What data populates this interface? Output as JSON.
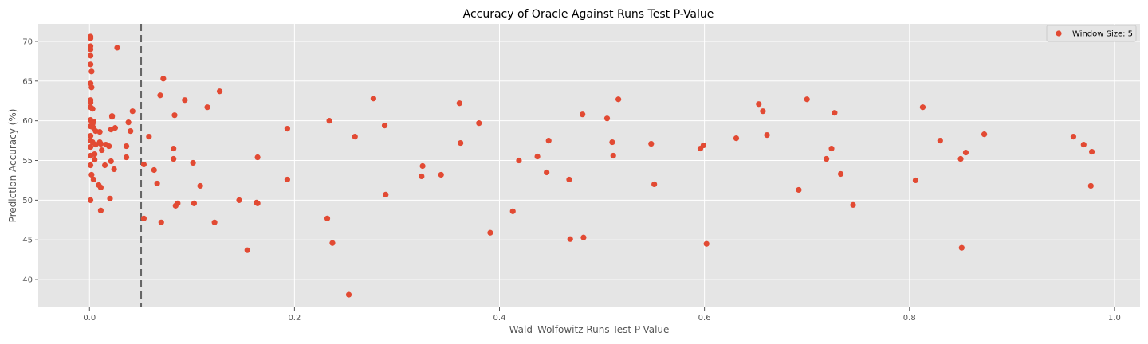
{
  "chart_data": {
    "type": "scatter",
    "title": "Accuracy of Oracle Against Runs Test P-Value",
    "xlabel": "Wald–Wolfowitz Runs Test P-Value",
    "ylabel": "Prediction Accuracy (%)",
    "xlim": [
      -0.05,
      1.025
    ],
    "ylim": [
      36.5,
      72.2
    ],
    "xticks": [
      0.0,
      0.2,
      0.4,
      0.6,
      0.8,
      1.0
    ],
    "xtick_labels": [
      "0.0",
      "0.2",
      "0.4",
      "0.6",
      "0.8",
      "1.0"
    ],
    "yticks": [
      40,
      45,
      50,
      55,
      60,
      65,
      70
    ],
    "ytick_labels": [
      "40",
      "45",
      "50",
      "55",
      "60",
      "65",
      "70"
    ],
    "grid": true,
    "legend_position": "top-right",
    "threshold_line": {
      "x": 0.05,
      "style": "dashed",
      "color": "#666666"
    },
    "colors": {
      "background": "#e5e5e5",
      "grid": "#ffffff",
      "point": "#e24a33"
    },
    "series": [
      {
        "name": "Window Size: 5",
        "points": [
          [
            0.001,
            70.6
          ],
          [
            0.001,
            70.4
          ],
          [
            0.001,
            69.4
          ],
          [
            0.001,
            69.0
          ],
          [
            0.001,
            68.2
          ],
          [
            0.001,
            67.1
          ],
          [
            0.002,
            66.2
          ],
          [
            0.001,
            64.7
          ],
          [
            0.002,
            64.2
          ],
          [
            0.001,
            62.6
          ],
          [
            0.001,
            62.3
          ],
          [
            0.001,
            61.7
          ],
          [
            0.003,
            61.5
          ],
          [
            0.001,
            60.1
          ],
          [
            0.004,
            59.9
          ],
          [
            0.003,
            59.6
          ],
          [
            0.001,
            59.3
          ],
          [
            0.004,
            59.1
          ],
          [
            0.006,
            58.7
          ],
          [
            0.001,
            58.1
          ],
          [
            0.001,
            57.5
          ],
          [
            0.003,
            57.3
          ],
          [
            0.006,
            57.0
          ],
          [
            0.001,
            56.7
          ],
          [
            0.005,
            55.8
          ],
          [
            0.001,
            55.6
          ],
          [
            0.005,
            55.1
          ],
          [
            0.001,
            54.4
          ],
          [
            0.002,
            53.2
          ],
          [
            0.004,
            52.6
          ],
          [
            0.001,
            50.0
          ],
          [
            0.01,
            58.6
          ],
          [
            0.01,
            57.3
          ],
          [
            0.011,
            57.1
          ],
          [
            0.012,
            56.3
          ],
          [
            0.016,
            57.0
          ],
          [
            0.019,
            56.8
          ],
          [
            0.015,
            54.4
          ],
          [
            0.021,
            54.9
          ],
          [
            0.009,
            51.9
          ],
          [
            0.011,
            51.6
          ],
          [
            0.011,
            48.7
          ],
          [
            0.02,
            50.2
          ],
          [
            0.022,
            60.5
          ],
          [
            0.022,
            60.6
          ],
          [
            0.021,
            58.9
          ],
          [
            0.025,
            59.1
          ],
          [
            0.024,
            53.9
          ],
          [
            0.027,
            69.2
          ],
          [
            0.036,
            56.8
          ],
          [
            0.038,
            59.8
          ],
          [
            0.04,
            58.7
          ],
          [
            0.042,
            61.2
          ],
          [
            0.036,
            55.4
          ],
          [
            0.053,
            54.5
          ],
          [
            0.053,
            47.7
          ],
          [
            0.058,
            58.0
          ],
          [
            0.063,
            53.8
          ],
          [
            0.066,
            52.1
          ],
          [
            0.069,
            63.2
          ],
          [
            0.072,
            65.3
          ],
          [
            0.07,
            47.2
          ],
          [
            0.083,
            60.7
          ],
          [
            0.082,
            56.5
          ],
          [
            0.082,
            55.2
          ],
          [
            0.084,
            49.3
          ],
          [
            0.086,
            49.6
          ],
          [
            0.093,
            62.6
          ],
          [
            0.101,
            54.7
          ],
          [
            0.102,
            49.6
          ],
          [
            0.108,
            51.8
          ],
          [
            0.115,
            61.7
          ],
          [
            0.122,
            47.2
          ],
          [
            0.127,
            63.7
          ],
          [
            0.146,
            50.0
          ],
          [
            0.154,
            43.7
          ],
          [
            0.163,
            49.7
          ],
          [
            0.164,
            49.6
          ],
          [
            0.164,
            55.4
          ],
          [
            0.193,
            59.0
          ],
          [
            0.193,
            52.6
          ],
          [
            0.232,
            47.7
          ],
          [
            0.234,
            60.0
          ],
          [
            0.237,
            44.6
          ],
          [
            0.253,
            38.1
          ],
          [
            0.259,
            58.0
          ],
          [
            0.277,
            62.8
          ],
          [
            0.288,
            59.4
          ],
          [
            0.289,
            50.7
          ],
          [
            0.324,
            53.0
          ],
          [
            0.325,
            54.3
          ],
          [
            0.343,
            53.2
          ],
          [
            0.361,
            62.2
          ],
          [
            0.362,
            57.2
          ],
          [
            0.38,
            59.7
          ],
          [
            0.391,
            45.9
          ],
          [
            0.413,
            48.6
          ],
          [
            0.419,
            55.0
          ],
          [
            0.437,
            55.5
          ],
          [
            0.446,
            53.5
          ],
          [
            0.448,
            57.5
          ],
          [
            0.468,
            52.6
          ],
          [
            0.469,
            45.1
          ],
          [
            0.481,
            60.8
          ],
          [
            0.482,
            45.3
          ],
          [
            0.505,
            60.3
          ],
          [
            0.51,
            57.3
          ],
          [
            0.511,
            55.6
          ],
          [
            0.516,
            62.7
          ],
          [
            0.548,
            57.1
          ],
          [
            0.551,
            52.0
          ],
          [
            0.596,
            56.5
          ],
          [
            0.599,
            56.9
          ],
          [
            0.602,
            44.5
          ],
          [
            0.631,
            57.8
          ],
          [
            0.653,
            62.1
          ],
          [
            0.657,
            61.2
          ],
          [
            0.661,
            58.2
          ],
          [
            0.692,
            51.3
          ],
          [
            0.7,
            62.7
          ],
          [
            0.719,
            55.2
          ],
          [
            0.724,
            56.5
          ],
          [
            0.727,
            61.0
          ],
          [
            0.733,
            53.3
          ],
          [
            0.745,
            49.4
          ],
          [
            0.806,
            52.5
          ],
          [
            0.813,
            61.7
          ],
          [
            0.83,
            57.5
          ],
          [
            0.85,
            55.2
          ],
          [
            0.851,
            44.0
          ],
          [
            0.855,
            56.0
          ],
          [
            0.873,
            58.3
          ],
          [
            0.96,
            58.0
          ],
          [
            0.97,
            57.0
          ],
          [
            0.977,
            51.8
          ],
          [
            0.978,
            56.1
          ]
        ]
      }
    ]
  }
}
